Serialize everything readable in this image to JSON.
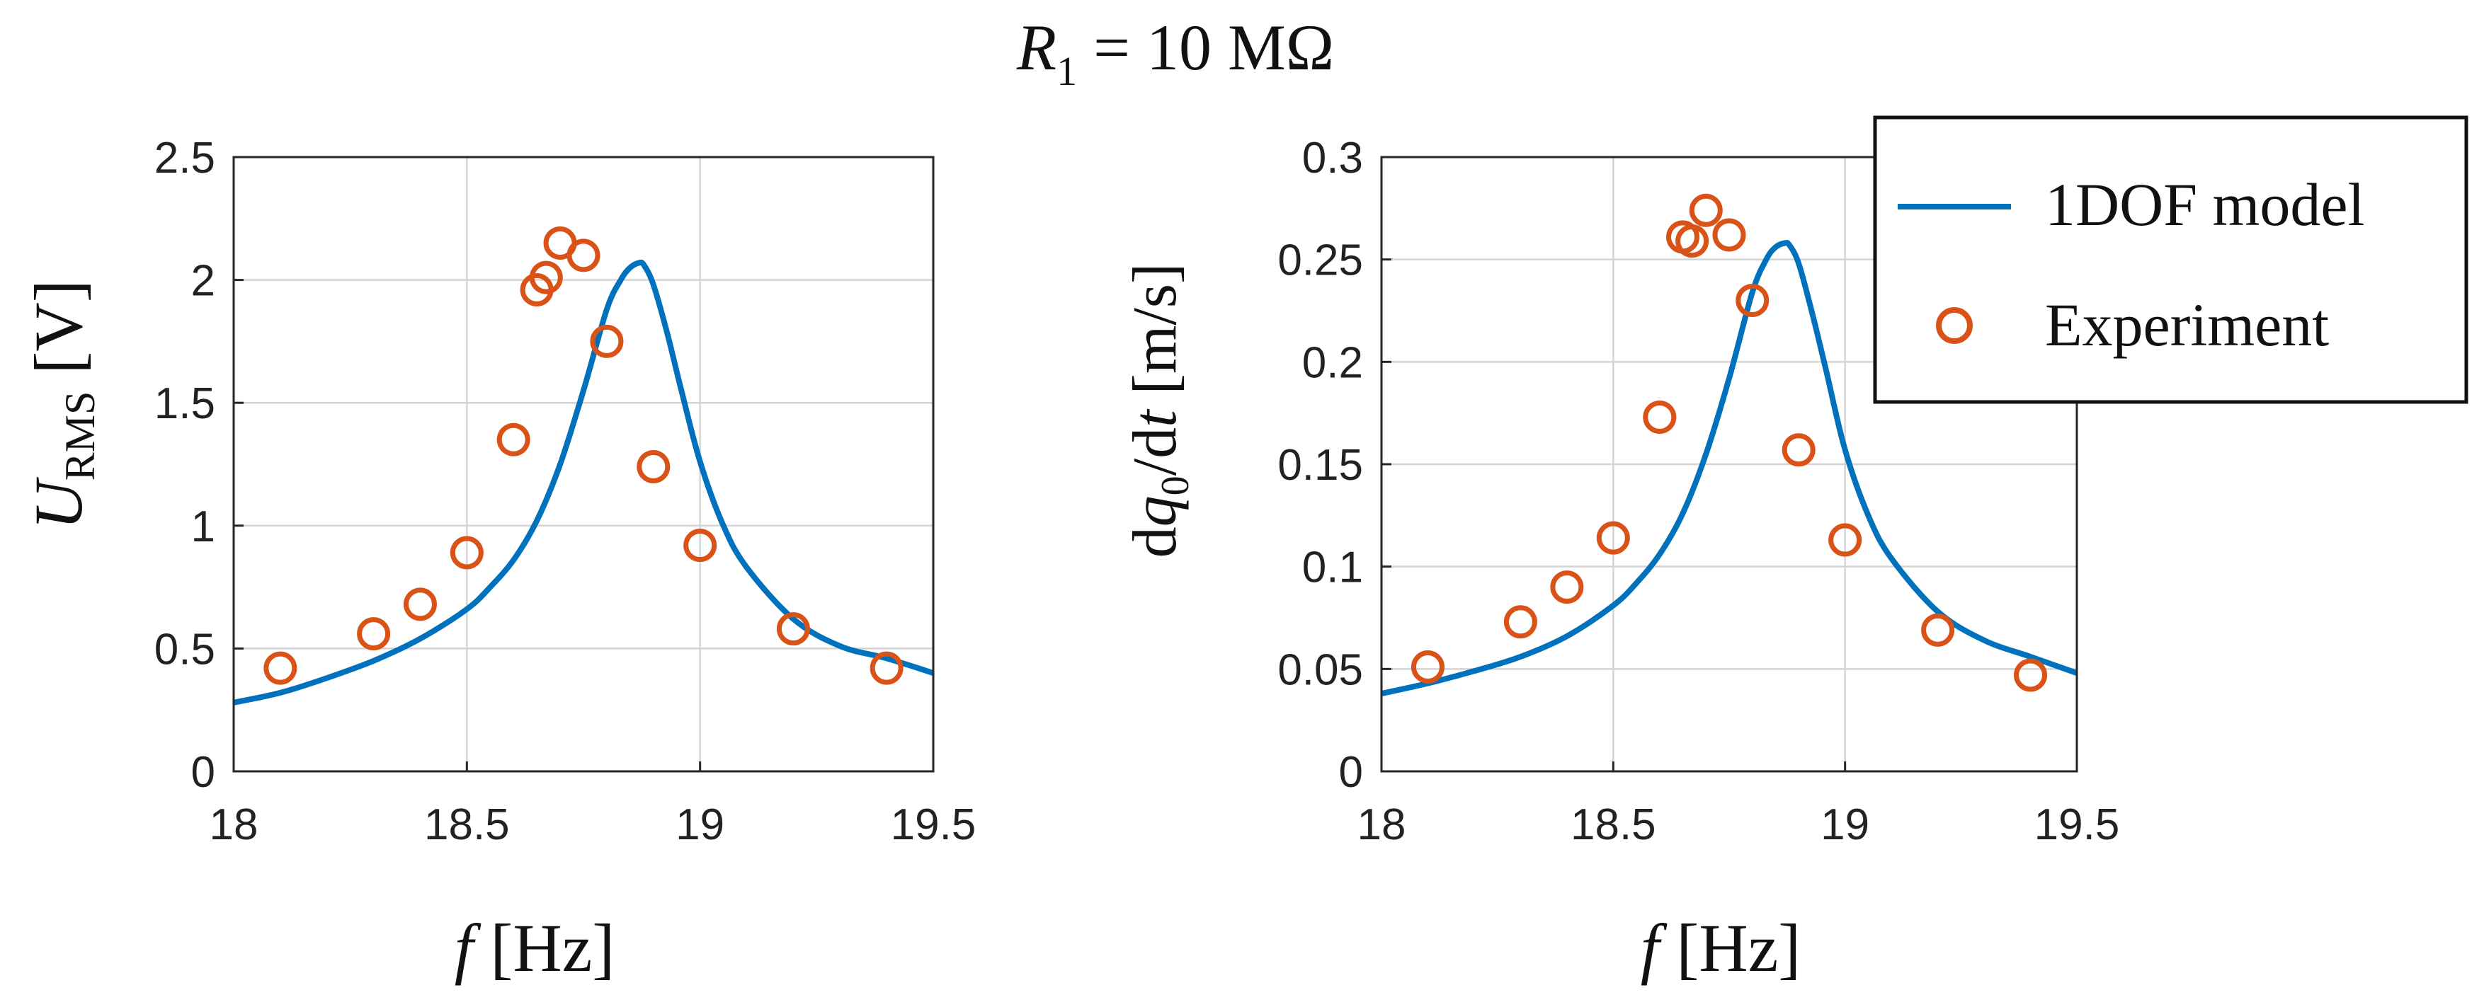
{
  "figure_title": {
    "var": "R",
    "sub": "1",
    "rest": " = 10 MΩ"
  },
  "colors": {
    "model": "#0072BD",
    "experiment": "#D95319",
    "grid": "#d4d4d4",
    "axis": "#262626"
  },
  "legend": {
    "model_label": "1DOF model",
    "experiment_label": "Experiment",
    "placement": "top-right"
  },
  "chart_data": [
    {
      "type": "scatter",
      "title": "",
      "xlabel": {
        "var": "f",
        "unit": " [Hz]"
      },
      "ylabel": {
        "var": "U",
        "sub": "RMS",
        "unit": " [V]"
      },
      "xlim": [
        18,
        19.5
      ],
      "ylim": [
        0,
        2.5
      ],
      "xticks": [
        18,
        18.5,
        19,
        19.5
      ],
      "xtick_labels": [
        "18",
        "18.5",
        "19",
        "19.5"
      ],
      "yticks": [
        0,
        0.5,
        1,
        1.5,
        2,
        2.5
      ],
      "ytick_labels": [
        "0",
        "0.5",
        "1",
        "1.5",
        "2",
        "2.5"
      ],
      "grid": true,
      "series": [
        {
          "name": "1DOF model",
          "kind": "line",
          "x": [
            18.0,
            18.1,
            18.2,
            18.3,
            18.4,
            18.5,
            18.55,
            18.6,
            18.65,
            18.7,
            18.75,
            18.8,
            18.83,
            18.85,
            18.87,
            18.88,
            18.9,
            18.93,
            18.96,
            19.0,
            19.05,
            19.1,
            19.2,
            19.3,
            19.4,
            19.5
          ],
          "y": [
            0.28,
            0.32,
            0.38,
            0.45,
            0.54,
            0.66,
            0.75,
            0.86,
            1.02,
            1.25,
            1.55,
            1.88,
            2.0,
            2.05,
            2.07,
            2.06,
            1.98,
            1.78,
            1.55,
            1.26,
            1.0,
            0.83,
            0.62,
            0.51,
            0.46,
            0.4
          ]
        },
        {
          "name": "Experiment",
          "kind": "scatter",
          "x": [
            18.1,
            18.3,
            18.4,
            18.5,
            18.6,
            18.65,
            18.67,
            18.7,
            18.75,
            18.8,
            18.9,
            19.0,
            19.2,
            19.4
          ],
          "y": [
            0.42,
            0.56,
            0.68,
            0.89,
            1.35,
            1.96,
            2.01,
            2.15,
            2.1,
            1.75,
            1.24,
            0.92,
            0.58,
            0.42
          ]
        }
      ]
    },
    {
      "type": "scatter",
      "title": "",
      "xlabel": {
        "var": "f",
        "unit": " [Hz]"
      },
      "ylabel": {
        "pre": "d",
        "var": "q",
        "sub": "0",
        "mid": "/d",
        "var2": "t",
        "unit": "  [m/s]"
      },
      "xlim": [
        18,
        19.5
      ],
      "ylim": [
        0,
        0.3
      ],
      "xticks": [
        18,
        18.5,
        19,
        19.5
      ],
      "xtick_labels": [
        "18",
        "18.5",
        "19",
        "19.5"
      ],
      "yticks": [
        0,
        0.05,
        0.1,
        0.15,
        0.2,
        0.25,
        0.3
      ],
      "ytick_labels": [
        "0",
        "0.05",
        "0.1",
        "0.15",
        "0.2",
        "0.25",
        "0.3"
      ],
      "grid": true,
      "series": [
        {
          "name": "1DOF model",
          "kind": "line",
          "x": [
            18.0,
            18.1,
            18.2,
            18.3,
            18.4,
            18.5,
            18.55,
            18.6,
            18.65,
            18.7,
            18.75,
            18.8,
            18.83,
            18.85,
            18.87,
            18.88,
            18.9,
            18.93,
            18.96,
            19.0,
            19.05,
            19.1,
            19.2,
            19.3,
            19.4,
            19.5
          ],
          "y": [
            0.038,
            0.043,
            0.049,
            0.056,
            0.066,
            0.081,
            0.092,
            0.106,
            0.126,
            0.155,
            0.192,
            0.234,
            0.25,
            0.256,
            0.258,
            0.257,
            0.248,
            0.223,
            0.195,
            0.157,
            0.125,
            0.104,
            0.078,
            0.064,
            0.056,
            0.048
          ]
        },
        {
          "name": "Experiment",
          "kind": "scatter",
          "x": [
            18.1,
            18.3,
            18.4,
            18.5,
            18.6,
            18.65,
            18.67,
            18.7,
            18.75,
            18.8,
            18.9,
            19.0,
            19.2,
            19.4
          ],
          "y": [
            0.051,
            0.073,
            0.09,
            0.114,
            0.173,
            0.261,
            0.259,
            0.274,
            0.262,
            0.23,
            0.157,
            0.113,
            0.069,
            0.047
          ]
        }
      ]
    }
  ]
}
